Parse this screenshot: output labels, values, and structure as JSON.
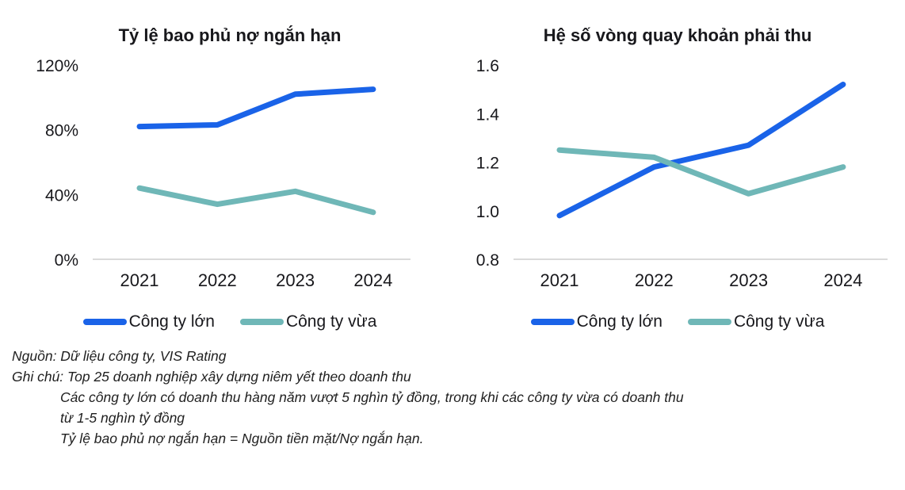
{
  "colors": {
    "large_company_blue": "#1a63e8",
    "medium_company_teal": "#6fb7b7",
    "baseline_gray": "#dadada",
    "text": "#18181c"
  },
  "chart_data": [
    {
      "type": "line",
      "title": "Tỷ lệ bao phủ nợ ngắn hạn",
      "categories": [
        "2021",
        "2022",
        "2023",
        "2024"
      ],
      "series": [
        {
          "name": "Công ty lớn",
          "color": "#1a63e8",
          "values": [
            82,
            83,
            102,
            105
          ]
        },
        {
          "name": "Công ty vừa",
          "color": "#6fb7b7",
          "values": [
            44,
            34,
            42,
            29
          ]
        }
      ],
      "unit": "%",
      "ylim": [
        0,
        120
      ],
      "yticks": [
        0,
        40,
        80,
        120
      ],
      "ytick_labels": [
        "0%",
        "40%",
        "80%",
        "120%"
      ],
      "grid": false,
      "legend_position": "bottom"
    },
    {
      "type": "line",
      "title": "Hệ số vòng quay khoản phải thu",
      "categories": [
        "2021",
        "2022",
        "2023",
        "2024"
      ],
      "series": [
        {
          "name": "Công ty lớn",
          "color": "#1a63e8",
          "values": [
            0.98,
            1.18,
            1.27,
            1.52
          ]
        },
        {
          "name": "Công ty vừa",
          "color": "#6fb7b7",
          "values": [
            1.25,
            1.22,
            1.07,
            1.18
          ]
        }
      ],
      "unit": "x",
      "ylim": [
        0.8,
        1.6
      ],
      "yticks": [
        0.8,
        1.0,
        1.2,
        1.4,
        1.6
      ],
      "ytick_labels": [
        "0.8",
        "1.0",
        "1.2",
        "1.4",
        "1.6"
      ],
      "grid": false,
      "legend_position": "bottom"
    }
  ],
  "notes": {
    "source": "Nguồn: Dữ liệu công ty, VIS Rating",
    "note1": "Ghi chú: Top 25 doanh nghiệp xây dựng niêm yết theo doanh thu",
    "note2": "Các công ty lớn có doanh thu hàng năm vượt 5 nghìn tỷ đồng, trong khi các công ty vừa có doanh thu",
    "note3": "từ 1-5 nghìn tỷ đồng",
    "note4": "Tỷ lệ bao phủ nợ ngắn hạn = Nguồn tiền mặt/Nợ ngắn hạn."
  }
}
